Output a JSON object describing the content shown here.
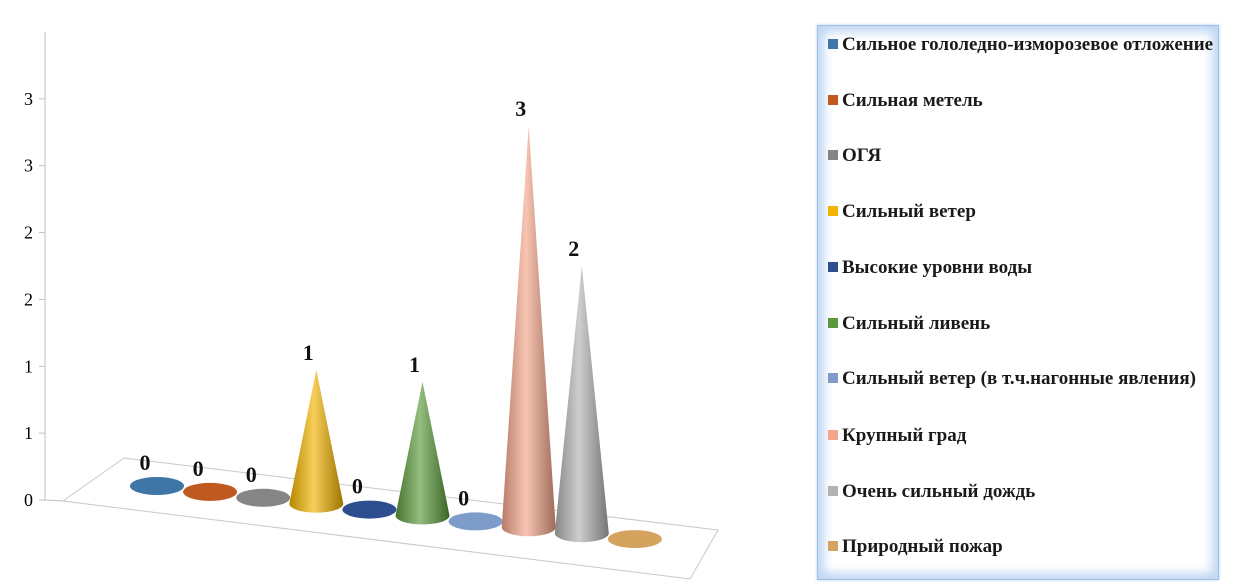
{
  "chart_data": {
    "type": "bar",
    "categories": [
      "Сильное гололедно-изморозевое отложение",
      "Сильная метель",
      "ОГЯ",
      "Сильный ветер",
      "Высокие уровни воды",
      "Сильный ливень",
      "Сильный ветер (в т.ч.нагонные явления)",
      "Крупный град",
      "Очень сильный дождь",
      "Природный пожар"
    ],
    "values": [
      0,
      0,
      0,
      1,
      0,
      1,
      0,
      3,
      2,
      0
    ],
    "data_labels": [
      "0",
      "0",
      "0",
      "1",
      "0",
      "1",
      "0",
      "3",
      "2",
      ""
    ],
    "colors": [
      "#3e76a8",
      "#c0591f",
      "#858585",
      "#f2b400",
      "#2d4f8f",
      "#5b9a3c",
      "#7d9cc9",
      "#f4a58a",
      "#b3b3b3",
      "#d4a45f"
    ],
    "ylim": [
      0,
      3.5
    ],
    "y_ticks": [
      {
        "value": 0,
        "label": "0"
      },
      {
        "value": 0.5,
        "label": "1"
      },
      {
        "value": 1,
        "label": "1"
      },
      {
        "value": 1.5,
        "label": "2"
      },
      {
        "value": 2,
        "label": "2"
      },
      {
        "value": 2.5,
        "label": "3"
      },
      {
        "value": 3,
        "label": "3"
      }
    ],
    "shape": "cone",
    "style": "3d",
    "legend_position": "right",
    "grid": false,
    "title": "",
    "xlabel": "",
    "ylabel": ""
  }
}
